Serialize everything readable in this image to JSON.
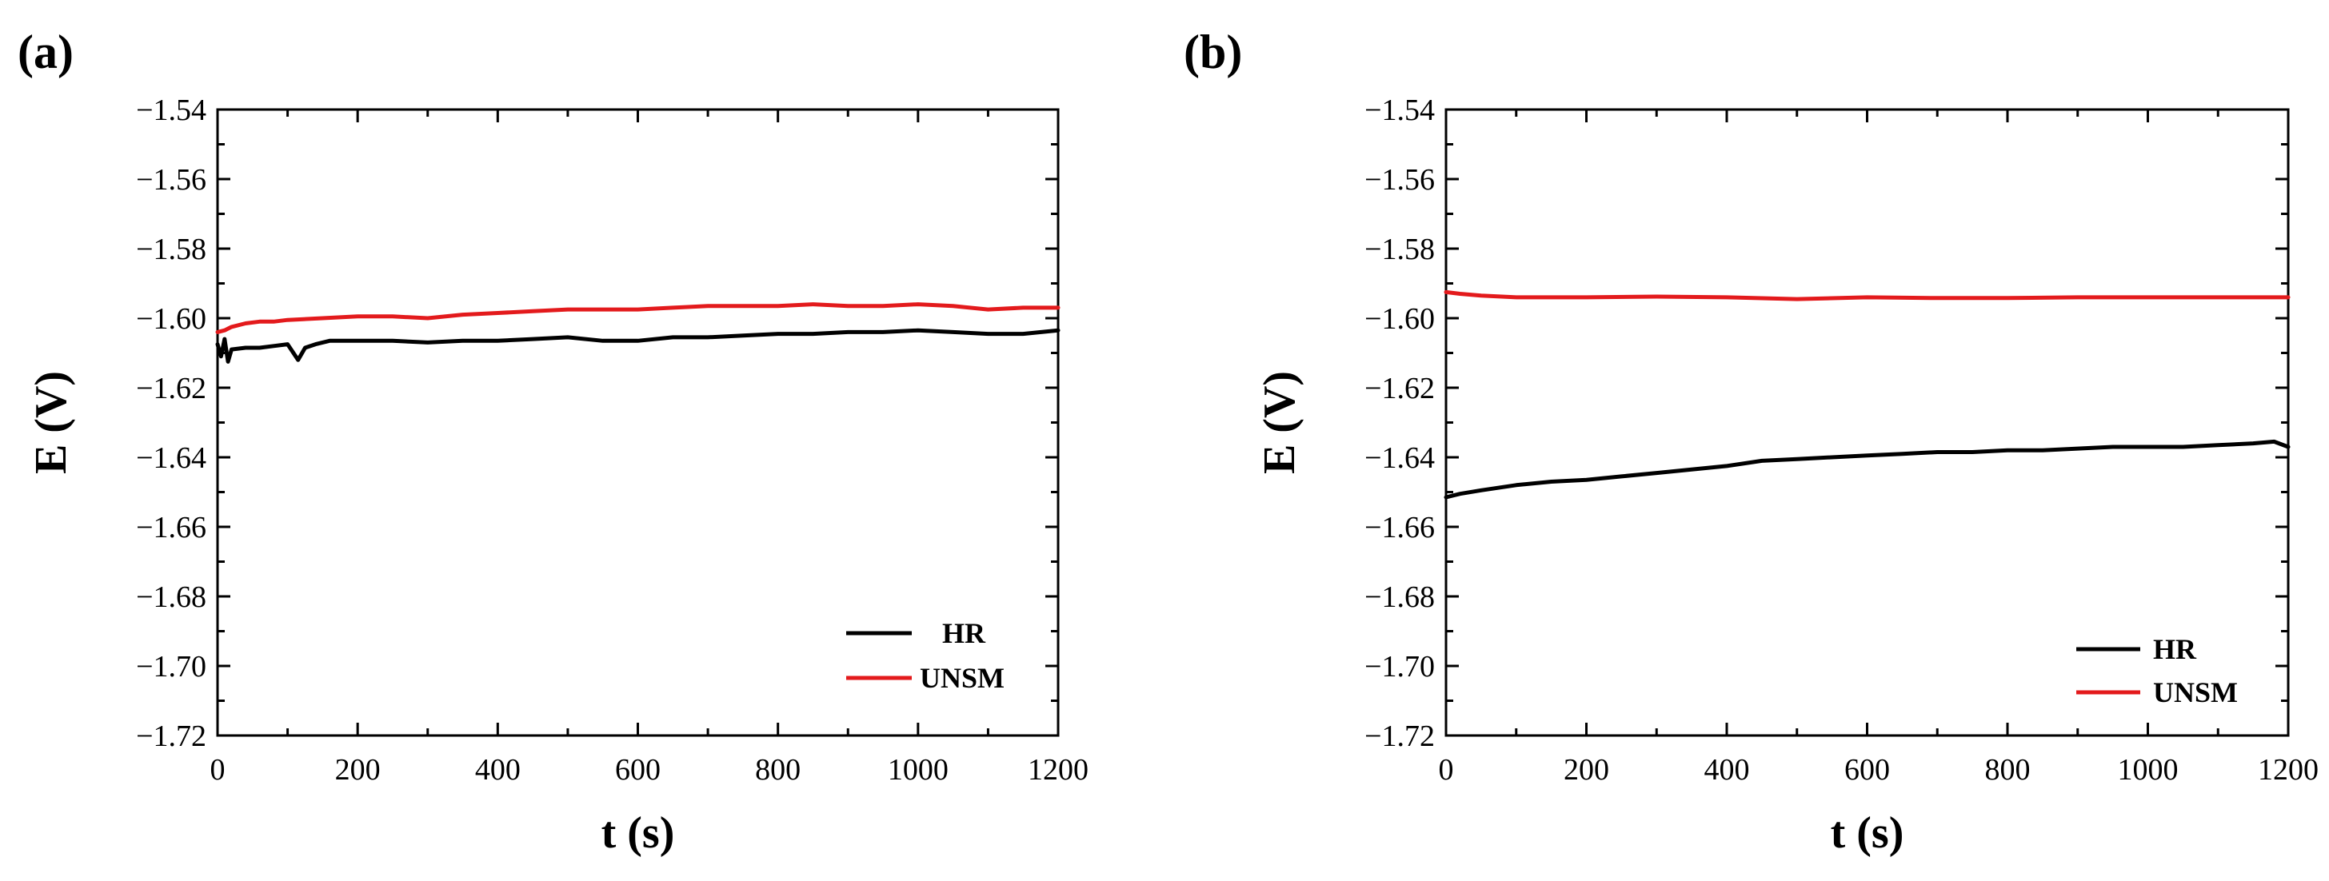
{
  "chart_data": [
    {
      "type": "line",
      "panel": "(a)",
      "xlabel": "t (s)",
      "ylabel": "E (V)",
      "xlim": [
        0,
        1200
      ],
      "ylim": [
        -1.72,
        -1.54
      ],
      "xticks": [
        0,
        200,
        400,
        600,
        800,
        1000,
        1200
      ],
      "xtick_labels": [
        "0",
        "200",
        "400",
        "600",
        "800",
        "1000",
        "1200"
      ],
      "yticks": [
        -1.54,
        -1.56,
        -1.58,
        -1.6,
        -1.62,
        -1.64,
        -1.66,
        -1.68,
        -1.7,
        -1.72
      ],
      "ytick_labels": [
        "-1.54",
        "-1.56",
        "-1.58",
        "-1.60",
        "-1.62",
        "-1.64",
        "-1.66",
        "-1.68",
        "-1.70",
        "-1.72"
      ],
      "legend_position": "bottom-right",
      "series": [
        {
          "name": "HR",
          "color": "#000000",
          "x": [
            0,
            5,
            10,
            15,
            20,
            40,
            60,
            80,
            100,
            115,
            125,
            140,
            160,
            200,
            250,
            300,
            350,
            400,
            450,
            500,
            550,
            600,
            650,
            700,
            750,
            800,
            850,
            900,
            950,
            1000,
            1050,
            1100,
            1150,
            1200
          ],
          "y": [
            -1.6075,
            -1.611,
            -1.606,
            -1.6125,
            -1.609,
            -1.6085,
            -1.6085,
            -1.608,
            -1.6075,
            -1.612,
            -1.6085,
            -1.6075,
            -1.6065,
            -1.6065,
            -1.6065,
            -1.607,
            -1.6065,
            -1.6065,
            -1.606,
            -1.6055,
            -1.6065,
            -1.6065,
            -1.6055,
            -1.6055,
            -1.605,
            -1.6045,
            -1.6045,
            -1.604,
            -1.604,
            -1.6035,
            -1.604,
            -1.6045,
            -1.6045,
            -1.6035
          ]
        },
        {
          "name": "UNSM",
          "color": "#e31a1c",
          "x": [
            0,
            10,
            20,
            40,
            60,
            80,
            100,
            150,
            200,
            250,
            300,
            350,
            400,
            450,
            500,
            550,
            600,
            650,
            700,
            750,
            800,
            850,
            900,
            950,
            1000,
            1050,
            1100,
            1150,
            1200
          ],
          "y": [
            -1.604,
            -1.6035,
            -1.6025,
            -1.6015,
            -1.601,
            -1.601,
            -1.6005,
            -1.6,
            -1.5995,
            -1.5995,
            -1.6,
            -1.599,
            -1.5985,
            -1.598,
            -1.5975,
            -1.5975,
            -1.5975,
            -1.597,
            -1.5965,
            -1.5965,
            -1.5965,
            -1.596,
            -1.5965,
            -1.5965,
            -1.596,
            -1.5965,
            -1.5975,
            -1.597,
            -1.597
          ]
        }
      ]
    },
    {
      "type": "line",
      "panel": "(b)",
      "xlabel": "t (s)",
      "ylabel": "E (V)",
      "xlim": [
        0,
        1200
      ],
      "ylim": [
        -1.72,
        -1.54
      ],
      "xticks": [
        0,
        200,
        400,
        600,
        800,
        1000,
        1200
      ],
      "xtick_labels": [
        "0",
        "200",
        "400",
        "600",
        "800",
        "1000",
        "1200"
      ],
      "yticks": [
        -1.54,
        -1.56,
        -1.58,
        -1.6,
        -1.62,
        -1.64,
        -1.66,
        -1.68,
        -1.7,
        -1.72
      ],
      "ytick_labels": [
        "-1.54",
        "-1.56",
        "-1.58",
        "-1.60",
        "-1.62",
        "-1.64",
        "-1.66",
        "-1.68",
        "-1.70",
        "-1.72"
      ],
      "legend_position": "bottom-right",
      "series": [
        {
          "name": "HR",
          "color": "#000000",
          "x": [
            0,
            20,
            50,
            100,
            150,
            200,
            250,
            300,
            350,
            400,
            450,
            500,
            550,
            600,
            650,
            700,
            750,
            800,
            850,
            900,
            950,
            1000,
            1050,
            1100,
            1150,
            1180,
            1200
          ],
          "y": [
            -1.6515,
            -1.6505,
            -1.6495,
            -1.648,
            -1.647,
            -1.6465,
            -1.6455,
            -1.6445,
            -1.6435,
            -1.6425,
            -1.641,
            -1.6405,
            -1.64,
            -1.6395,
            -1.639,
            -1.6385,
            -1.6385,
            -1.638,
            -1.638,
            -1.6375,
            -1.637,
            -1.637,
            -1.637,
            -1.6365,
            -1.636,
            -1.6355,
            -1.637
          ]
        },
        {
          "name": "UNSM",
          "color": "#e31a1c",
          "x": [
            0,
            20,
            50,
            100,
            150,
            200,
            300,
            400,
            500,
            600,
            700,
            800,
            900,
            1000,
            1100,
            1200
          ],
          "y": [
            -1.5925,
            -1.593,
            -1.5935,
            -1.594,
            -1.594,
            -1.594,
            -1.5938,
            -1.594,
            -1.5945,
            -1.594,
            -1.5942,
            -1.5942,
            -1.594,
            -1.594,
            -1.594,
            -1.594
          ]
        }
      ]
    }
  ]
}
